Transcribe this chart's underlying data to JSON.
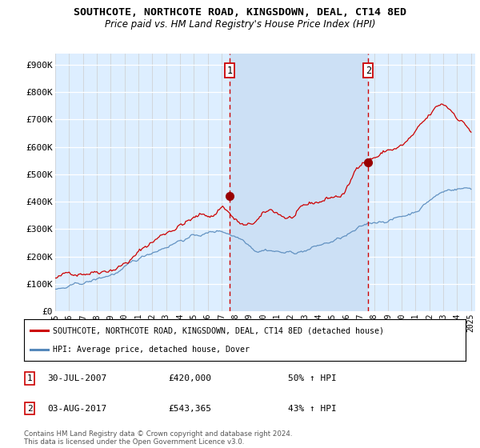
{
  "title": "SOUTHCOTE, NORTHCOTE ROAD, KINGSDOWN, DEAL, CT14 8ED",
  "subtitle": "Price paid vs. HM Land Registry's House Price Index (HPI)",
  "legend_line1": "SOUTHCOTE, NORTHCOTE ROAD, KINGSDOWN, DEAL, CT14 8ED (detached house)",
  "legend_line2": "HPI: Average price, detached house, Dover",
  "ylabel_ticks": [
    "£0",
    "£100K",
    "£200K",
    "£300K",
    "£400K",
    "£500K",
    "£600K",
    "£700K",
    "£800K",
    "£900K"
  ],
  "ytick_vals": [
    0,
    100000,
    200000,
    300000,
    400000,
    500000,
    600000,
    700000,
    800000,
    900000
  ],
  "xlim_start": 1995.0,
  "xlim_end": 2025.3,
  "ylim": [
    0,
    940000
  ],
  "vline1_x": 2007.57,
  "vline2_x": 2017.58,
  "vline1_label": "1",
  "vline2_label": "2",
  "dot1_x": 2007.57,
  "dot1_y": 420000,
  "dot2_x": 2017.58,
  "dot2_y": 543365,
  "annot1_date": "30-JUL-2007",
  "annot1_price": "£420,000",
  "annot1_hpi": "50% ↑ HPI",
  "annot2_date": "03-AUG-2017",
  "annot2_price": "£543,365",
  "annot2_hpi": "43% ↑ HPI",
  "footer": "Contains HM Land Registry data © Crown copyright and database right 2024.\nThis data is licensed under the Open Government Licence v3.0.",
  "red_color": "#cc0000",
  "blue_color": "#5588bb",
  "shade_color": "#cce0f5",
  "bg_color": "#ddeeff",
  "grid_color": "#ffffff",
  "title_fontsize": 9.5,
  "subtitle_fontsize": 8.5
}
